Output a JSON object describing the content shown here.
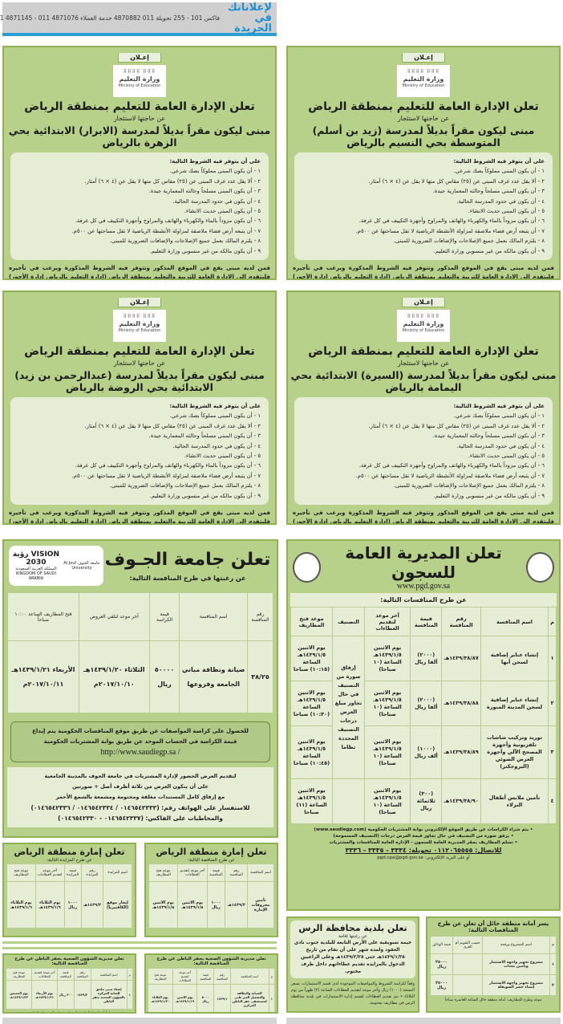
{
  "header": {
    "logo_line1": "لإعلاناتك",
    "logo_line2": "في الجريدة",
    "contacts": "011 4871145 - 011 4871076 فاكس 101 - 255 تحويلة 011 4870882 خدمة العملاء"
  },
  "education_common": {
    "tab": "إعـلان",
    "logo_ar": "وزارة التعليم",
    "logo_en": "Ministry of Education",
    "title": "تعلن الإدارة العامة للتعليم بمنطقة الرياض",
    "subtitle": "عن حاجتها لاستئجار",
    "conditions": [
      "على أن يتوفر فيه الشروط التالية:",
      "١ - أن يكون المبنى مملوكاً بصك شرعي.",
      "٢ - ألا يقل عدد غرف المبنى عن (٢٥) مقاس كل منها لا يقل عن (٤ × ٦) أمتار.",
      "٣ - أن يكون المبنى مسلحاً وحالته المعمارية جيدة.",
      "٤ - أن يكون في حدود المدرسة الحالية.",
      "٥ - أن يكون المبنى حديث الانشاء.",
      "٦ - أن يكون مزوداً بالماء والكهرباء والهاتف والمراوح وأجهزة التكييف في كل غرفة.",
      "٧ - أن يتبعه أرض فضاء ملاصقة لمزاولة الأنشطة الرياضية لا تقل مساحتها عن ٥٠٠م.",
      "٨ - يلتزم المالك بعمل جميع الإصلاحات والإضافات الضرورية للمبنى.",
      "٩ - أن يكون مالكه من غير منسوبي وزارة التعليم."
    ],
    "footer": "فمن لديه مبنى يقع في الموقع المذكور وتتوفر فيه الشروط المذكورة ويرغب في تأجيره فليتقدم إلى الإدارة العامة للتربية والتعليم بمنطقة الرياض (إدارة التعليم بالرياض إدارة الأجور) موضحاً بالطلب مواصفات المبنى ومقدار الأجرة وذلك خلال (١٥) يوماً من تاريخ نشر الإعلان."
  },
  "education_ads": [
    {
      "building": "مبنى ليكون مقراً بديلاً لمدرسة (زيد بن أسلم) المتوسطة بحي النسيم بالرياض"
    },
    {
      "building": "مبنى ليكون مقراً بديلاً لمدرسة (الابرار) الابتدائية بحي الزهرة بالرياض"
    },
    {
      "building": "مبنى ليكون مقراً بديلاً لمدرسة (السيرة) الابتدائية بحي اليمامة بالرياض"
    },
    {
      "building": "مبنى ليكون مقراً بديلاً لمدرسة (عبدالرحمن بن زيد) الابتدائية بحي الروضة بالرياض"
    }
  ],
  "jouf": {
    "title": "تعلن جامعة الجـوف",
    "subtitle": "عن رغبتها في طرح المنافسة التالية:",
    "logo_vision": "VISION رؤية 2030",
    "logo_kingdom": "المملكة العربية السعودية KINGDOM OF SAUDI ARABIA",
    "logo_uni": "جامعة الجوف Al Jouf University",
    "headers": [
      "رقم المنافسة",
      "اسم المنافسة",
      "قيمة الكراسة",
      "آخر موعد لتلقي العروض",
      "فتح المظاريف الساعة ١٠:٠٠ صباحاً"
    ],
    "row": [
      "٣٨/٢٥",
      "صيانة ونظافة مباني الجامعة وفروعها",
      "٥٠٠٠٠ ريال",
      "الثلاثاء ١٤٣٩/١/٢٠هـ ٢٠١٧/١٠/١٠م",
      "الأربعاء ١٤٣٩/١/٢١هـ ٢٠١٧/١٠/١١م"
    ],
    "box_line1": "للحصول على كراسة المواصفات عن طريق موقع المنافسات الحكومية يتم إيداع",
    "box_line2": "قيمة الكراسة في الحساب الموحد عن طريق بوابة المشتريات الحكومية",
    "box_url": "/ http://www.saudiegp.sa",
    "info": [
      "لتقديم العرض الحضور لإدارة المشتريات في جامعة الجوف بالمدينة الجامعية",
      "على أن يتكون العرض من ثلاثة أظرف أصل + صورتين",
      "مع إرفاق كامل المستندات مغلقة ومختومة ومشمعة بالشمع الأحمر",
      "للاستفسار على الهواتف رقم: (٠١٤٦٥٤٢٣٣٣ / ٠١٤٦٥٤٢٣٣٤ / ٠١٤٦٥٤٢٣٣٦)",
      "والمخاطبات على الفاكس: (٠١٤٦٥٤٢٣٣٧ - ٠١٤٦٥٤٢٣٣٠)"
    ]
  },
  "prisons": {
    "title": "تعلن المديرية العامة للسجون",
    "url": "www.pgd.gov.sa",
    "subtitle": "عن طرح المنافسات التالية:",
    "headers": [
      "م",
      "اسم المنافسة",
      "رقم المنافسة",
      "قيمة المنافسة",
      "آخر موعد لتقديم العطاءات",
      "التصنيف",
      "موعد فتح المظاريف"
    ],
    "classification": "إرفاق صورة من التصنيف في حال تجاوز مبلغ العرض درجات التصنيف المحددة نظاما",
    "rows": [
      {
        "n": "١",
        "name": "إنشاء عنابر إضافية لسجن أبها",
        "num": "١٤٣٩/٣٨/٨٧هـ",
        "value": "(٢٠٠٠) ألفا ريال",
        "deadline": "يوم الاثنين ١٤٣٩/١/٥هـ الساعة (١٠ صباحا)",
        "open": "يوم الاثنين ١٤٣٩/١/٥هـ الساعة (١٠:١٥) صباحا"
      },
      {
        "n": "٢",
        "name": "إنشاء عنابر إضافية لسجن المدينة المنورة",
        "num": "١٤٣٩/٣٨/٨٨هـ",
        "value": "(٢٠٠٠) ألفا ريال",
        "deadline": "يوم الاثنين ١٤٣٩/١/٥هـ الساعة (١٠ صباحا)",
        "open": "يوم الاثنين ١٤٣٩/١/٥هـ الساعة (١٠:٣٠) صباحا"
      },
      {
        "n": "٣",
        "name": "توريد وتركيب شاشات تلفزيونية وأجهزة المصحح الآلي وأجهزة العرض الضوئي (البروجكتر)",
        "num": "١٤٣٩/٣٨/٨٩هـ",
        "value": "(١٠٠٠) ألف ريال",
        "deadline": "يوم الاثنين ١٤٣٩/١/٥هـ الساعة (١٠ صباحا)",
        "open": "يوم الاثنين ١٤٣٩/١/٥هـ الساعة (١٠:٤٥) صباحا"
      },
      {
        "n": "٤",
        "name": "تأمين ملابس أطفال النزلاء",
        "num": "١٤٣٩/٣٨/٩٠هـ",
        "value": "(٣٠٠) ثلاثمائة ريال",
        "deadline": "يوم الاثنين ١٤٣٩/١/٥هـ الساعة (١٠ صباحا)",
        "open": "يوم الاثنين ١٤٣٩/١/٥هـ الساعة (١١) صباحا"
      }
    ],
    "notes": [
      "• يتم شراء الكراسات عن طريق الموقع الإلكتروني بوابة المشتريات الحكومية (www.saudiegp.com)",
      "• يرفق صورة من التصنيف في حال تجاوز قيمة العرض درجات (التصنيف المسموحة)",
      "• تسلم المظاريف بمقر المديرية العامة للسجون - الإدارة العامة للمنافسات والمشتريات"
    ],
    "contact": "للاتصال: ٠١١٢٠٦٥٥٥٥ تحويلة: ٣٣٣٤ - ٣٣٣٥ - ٣٣٣٦",
    "email": "أو على البريد الإلكتروني: pgd.cpa@pgd.gov.sa"
  },
  "riyadh_emirate": [
    {
      "title": "تعلن إمارة منطقة الرياض",
      "subtitle": "عن طرح المناقصة التالية:",
      "headers": [
        "اسم المناقصة",
        "رقم المناقصة",
        "قيمة المناقصة",
        "آخر موعد لتقديم العطاءات",
        "موعد فتح المظاريف"
      ],
      "row": [
        "تأمين محروقات الإمارة",
        "١٤٣٩/٢هـ",
        "١٠٠٠ ريال",
        "يوم الاثنين ١٤٣٩/١/٥هـ",
        "يوم الاثنين ١٤٣٩/١/٥هـ"
      ]
    },
    {
      "title": "تعلن إمارة منطقة الرياض",
      "subtitle": "عن طرح المزايدة التالية:",
      "headers": [
        "اسم المزايدة",
        "رقم المزايدة",
        "قيمة المزايدة",
        "آخر موعد لتقديم العطاءات",
        "موعد فتح المظاريف"
      ],
      "row": [
        "إيجار موقع (الكافتيريا)",
        "١٤٣٩/٢هـ",
        "١٠٠٠ ريال",
        "يوم الثلاثاء ١٤٣٩/١/٦هـ",
        "يوم الثلاثاء ١٤٣٩/١/٦هـ"
      ]
    }
  ],
  "health": [
    {
      "title": "تعلن مديرية الشؤون الصحية بحفر الباطن عن طرح المناقصة التالية:",
      "headers": [
        "م",
        "اسم المناقصة",
        "رقم المناقصة",
        "قيمة المناقصة",
        "آخر موعد لتقديم العطاءات",
        "موعد فتح المظاريف"
      ],
      "row": [
        "١",
        "الصيانة والنظافة والتشغيل الغير طبي لمستشفى حفر الباطن المركزي",
        "١٤٣٩/١",
        "٥٠٠٠ ريال",
        "يوم الاثنين ١٤٣٩/١/١٩هـ",
        "يوم الثلاثاء ١٤٣٩/١/٢٠هـ"
      ],
      "footer": "علماً بأن الشراء المنافسة الدخول عبر بوابة المشتريات الحكومية"
    },
    {
      "title": "تعلن مديرية الشؤون الصحية بحفر الباطن عن طرح المناقصة التالية:",
      "headers": [
        "م",
        "اسم المناقصة",
        "رقم المناقصة",
        "قيمة المناقصة",
        "آخر موعد لتقديم العطاءات",
        "موعد فتح المظاريف"
      ],
      "row": [
        "١",
        "إنشاء مبنى ملحق للعناية المركزة بالشؤون الصحية بحفر الباطن",
        "١٤٣٩/٢",
        "٣٠٠ ريال",
        "يوم الأربعاء ١٤٣٩/١/٢١هـ",
        "يوم الخميس ١٤٣٩/١/٢٢هـ"
      ],
      "footer": "علماً بأن الشراء المنافسة الدخول عبر بوابة المشتريات الحكومية"
    }
  ],
  "rass": {
    "title": "تعلن بلدية محافظة الرس",
    "subtitle": "عن رغبتها إقامة",
    "body": "خيمة تسويقية على الأرض التابعة للبلدية جنوب نادي العقود ولمدة شهر على أن تقام من تاريخ ١٤٣٩/١/٢٥هـ حتى ١٤٣٩/٢/٢٥هـ وعلى الراغبين الدخول بالمزايدة تقديم عطاءاتهم داخل ظرف مختوم.",
    "note": "وفقاً لكراسة الشروط والمواصفات الموجودة لدى قسم الاستثمارات بسعر النسخة (١٠٠٠) ريال وآخر موعد لتقديم العطاءات الساعة (٢) ظهراً من يوم الثلاثاء • يتم تقديم العطاءات لقسم إدارة الاستثمارات في بلدية محافظة الرس في مظاريف مختومة."
  },
  "hail": {
    "title": "يسر أمانة منطقة حائل أن تعلن عن طرح المناقصات التالية:",
    "headers": [
      "م",
      "اسم المشروع ورقمه",
      "حسب التقويم أم القرى",
      "قيمة الوثائق"
    ],
    "rows": [
      [
        "١",
        "مشروع تجهيز واجهة الاستثمار وتأمين معدات",
        "٢٥٠٠٠ ريال"
      ],
      [
        "٢",
        "مشروع تجهيز واجهة الاستثمار إنشاء جسر السويفلة",
        "٢٥٠٠٠ ريال"
      ]
    ],
    "footer": "موعد وطرح المظاريف: أمانة منطقة حائل الساعة العاشرة صباحاً"
  },
  "colors": {
    "ad_green": "#b7d08a",
    "panel": "#e6edd5",
    "border": "#8fb350",
    "header_blue": "#2a9fd6"
  }
}
